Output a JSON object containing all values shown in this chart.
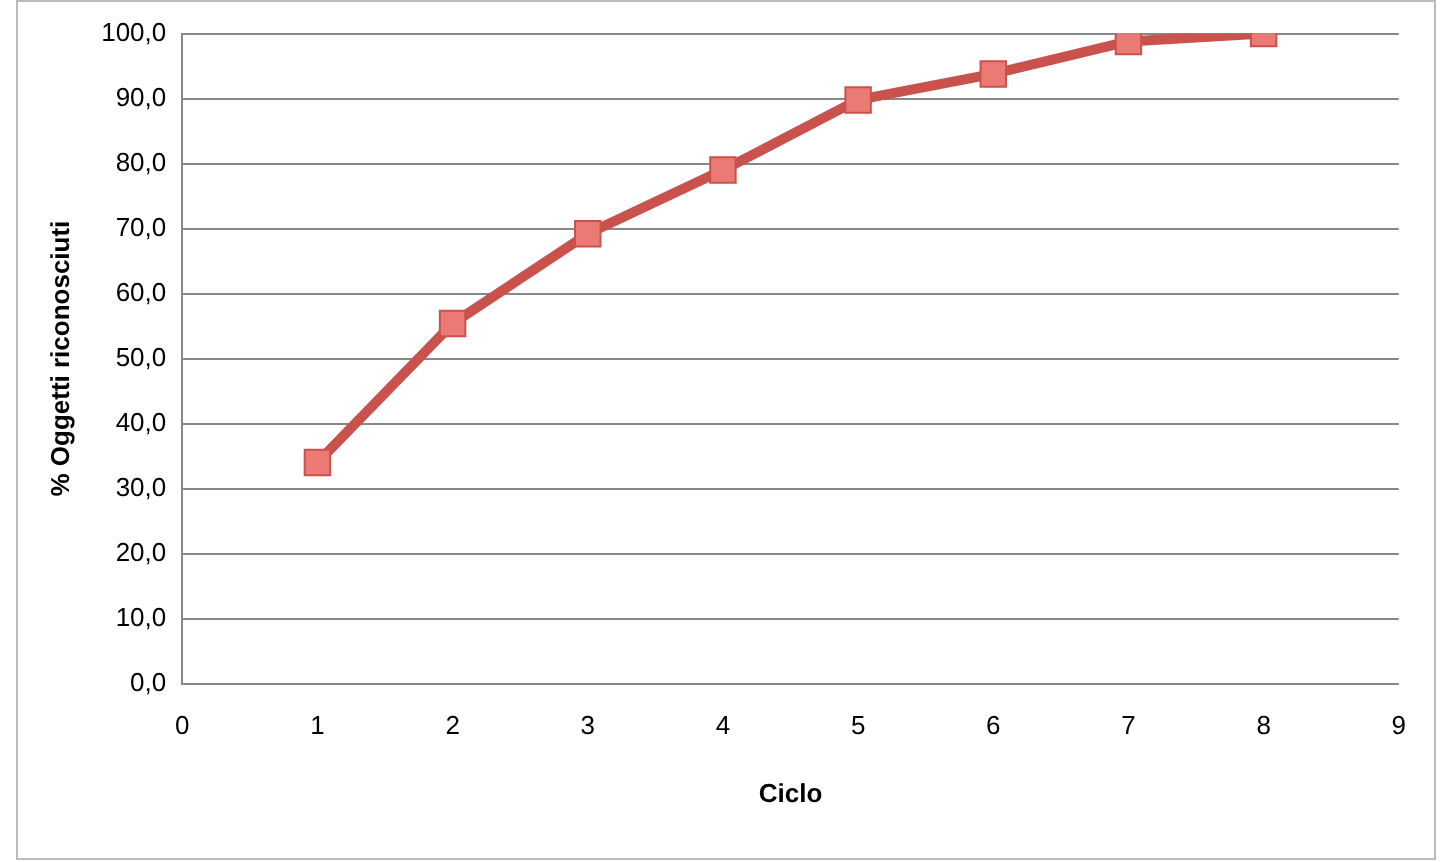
{
  "chart_data": {
    "type": "line",
    "xlabel": "Ciclo",
    "ylabel": "% Oggetti riconosciuti",
    "x": [
      1,
      2,
      3,
      4,
      5,
      6,
      7,
      8
    ],
    "series": [
      {
        "color": "#c9524c",
        "values": [
          34,
          55.4,
          69.2,
          79,
          89.8,
          93.8,
          98.8,
          100
        ]
      }
    ],
    "xlim": [
      0,
      9
    ],
    "xticks": [
      0,
      1,
      2,
      3,
      4,
      5,
      6,
      7,
      8,
      9
    ],
    "ylim": [
      0,
      100
    ],
    "yticks": [
      {
        "value": 0,
        "label": "0,0"
      },
      {
        "value": 10,
        "label": "10,0"
      },
      {
        "value": 20,
        "label": "20,0"
      },
      {
        "value": 30,
        "label": "30,0"
      },
      {
        "value": 40,
        "label": "40,0"
      },
      {
        "value": 50,
        "label": "50,0"
      },
      {
        "value": 60,
        "label": "60,0"
      },
      {
        "value": 70,
        "label": "70,0"
      },
      {
        "value": 80,
        "label": "80,0"
      },
      {
        "value": 90,
        "label": "90,0"
      },
      {
        "value": 100,
        "label": "100,0"
      }
    ],
    "grid": "y",
    "marker": "square",
    "line_style": "solid",
    "legend": false
  }
}
